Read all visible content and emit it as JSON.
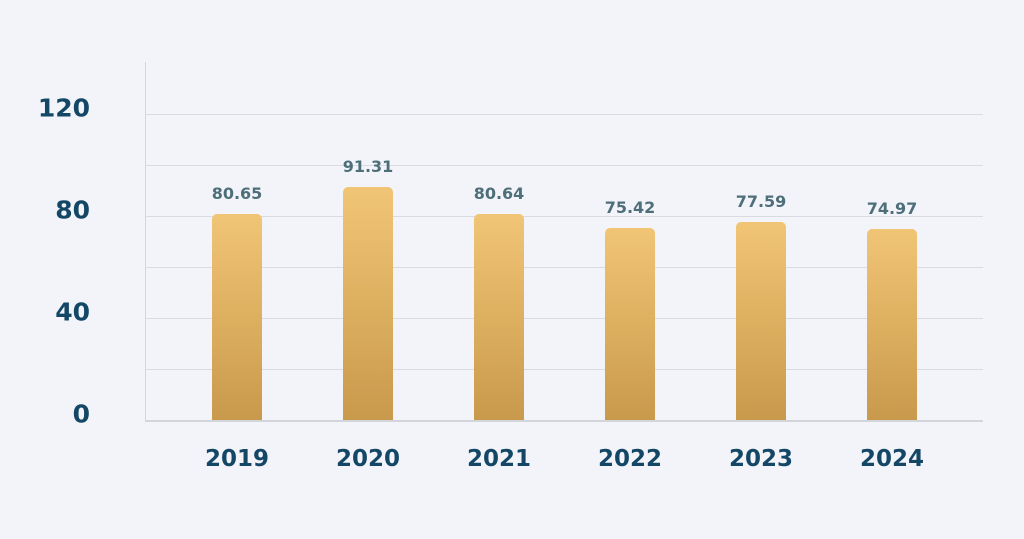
{
  "chart_data": {
    "type": "bar",
    "title": "",
    "xlabel": "",
    "ylabel": "",
    "categories": [
      "2019",
      "2020",
      "2021",
      "2022",
      "2023",
      "2024"
    ],
    "values": [
      80.65,
      91.31,
      80.64,
      75.42,
      77.59,
      74.97
    ],
    "value_labels": [
      "80.65",
      "91.31",
      "80.64",
      "75.42",
      "77.59",
      "74.97"
    ],
    "ylim": [
      0,
      120
    ],
    "yticks": [
      "0",
      "40",
      "80",
      "120"
    ],
    "grid": true,
    "gridline_step": 20,
    "legend": null,
    "bar_color": "#ddb060",
    "bar_gradient": [
      "#f0c575",
      "#c9994c"
    ],
    "tick_color": "#144766",
    "value_label_color": "#4e6f7a"
  }
}
